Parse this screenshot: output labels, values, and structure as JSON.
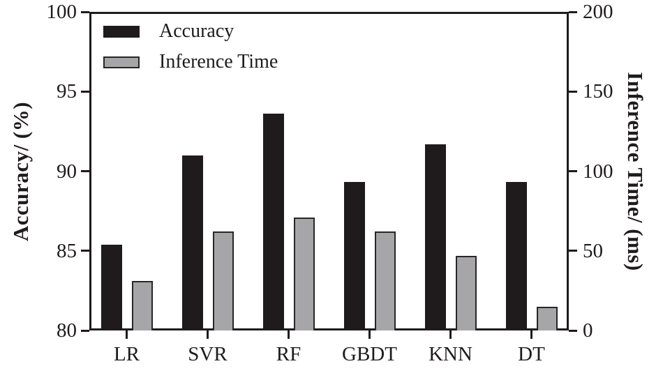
{
  "chart_data": {
    "type": "bar",
    "title": "",
    "categories": [
      "LR",
      "SVR",
      "RF",
      "GBDT",
      "KNN",
      "DT"
    ],
    "series": [
      {
        "name": "Accuracy",
        "axis": "left",
        "color": "#1f1b1c",
        "values": [
          85.4,
          91.0,
          93.6,
          89.3,
          91.7,
          89.3
        ]
      },
      {
        "name": "Inference Time",
        "axis": "right",
        "color": "#a6a6a9",
        "border_color": "#2a2526",
        "values": [
          31,
          62,
          71,
          62,
          47,
          15
        ]
      }
    ],
    "left_axis": {
      "label": "Accuracy/ (%)",
      "min": 80,
      "max": 100,
      "ticks": [
        80,
        85,
        90,
        95,
        100
      ]
    },
    "right_axis": {
      "label": "Inference Time/ (ms)",
      "min": 0,
      "max": 200,
      "ticks": [
        0,
        50,
        100,
        150,
        200
      ]
    },
    "legend": {
      "position": "top-left-inside",
      "entries": [
        "Accuracy",
        "Inference Time"
      ]
    },
    "grid": "off",
    "frame": "full-box",
    "tick_direction": "outward"
  }
}
